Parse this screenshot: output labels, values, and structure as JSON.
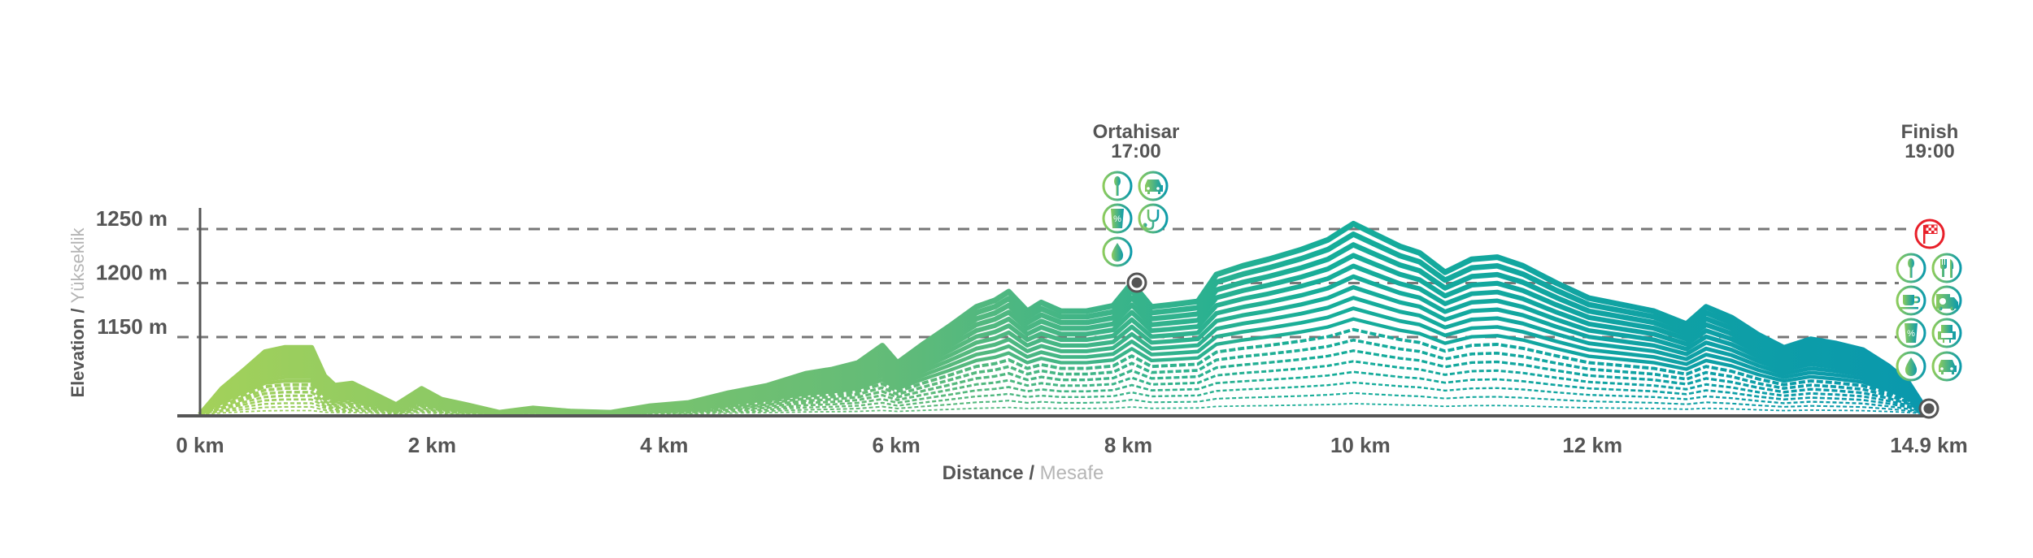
{
  "chart_data": {
    "type": "area",
    "title": "",
    "xlabel": "Distance",
    "xlabel_secondary": "Mesafe",
    "ylabel": "Elevation",
    "ylabel_secondary": "Yükseklik",
    "xlim": [
      0,
      14.9
    ],
    "ylim": [
      1077,
      1260
    ],
    "grid": "dashed horizontal at y ticks",
    "x_ticks": [
      {
        "value": 0,
        "label": "0 km"
      },
      {
        "value": 2,
        "label": "2 km"
      },
      {
        "value": 4,
        "label": "4 km"
      },
      {
        "value": 6,
        "label": "6 km"
      },
      {
        "value": 8,
        "label": "8 km"
      },
      {
        "value": 10,
        "label": "10 km"
      },
      {
        "value": 12,
        "label": "12 km"
      },
      {
        "value": 14.9,
        "label": "14.9 km"
      }
    ],
    "y_ticks": [
      {
        "value": 1250,
        "label": "1250 m"
      },
      {
        "value": 1200,
        "label": "1200 m"
      },
      {
        "value": 1150,
        "label": "1150 m"
      }
    ],
    "x": [
      0,
      0.19,
      0.39,
      0.56,
      0.73,
      0.96,
      1.07,
      1.16,
      1.31,
      1.52,
      1.69,
      1.91,
      2.08,
      2.3,
      2.58,
      2.87,
      3.2,
      3.54,
      3.88,
      4.21,
      4.55,
      4.89,
      5.22,
      5.45,
      5.67,
      5.88,
      6.01,
      6.24,
      6.46,
      6.69,
      6.85,
      6.97,
      7.13,
      7.25,
      7.42,
      7.64,
      7.87,
      8.03,
      8.2,
      8.37,
      8.6,
      8.76,
      8.99,
      9.21,
      9.49,
      9.72,
      9.94,
      10.11,
      10.34,
      10.51,
      10.73,
      10.96,
      11.18,
      11.4,
      11.69,
      11.97,
      12.3,
      12.53,
      12.81,
      12.98,
      13.2,
      13.43,
      13.65,
      13.88,
      14.1,
      14.33,
      14.55,
      14.72,
      14.9
    ],
    "y": [
      1078,
      1102,
      1120,
      1136,
      1140,
      1140,
      1114,
      1105,
      1107,
      1096,
      1087,
      1102,
      1092,
      1087,
      1080,
      1084,
      1081,
      1080,
      1086,
      1089,
      1098,
      1105,
      1116,
      1120,
      1126,
      1142,
      1126,
      1144,
      1160,
      1178,
      1184,
      1192,
      1174,
      1182,
      1174,
      1174,
      1179,
      1200,
      1178,
      1180,
      1183,
      1208,
      1216,
      1222,
      1231,
      1240,
      1255,
      1246,
      1234,
      1228,
      1210,
      1222,
      1224,
      1216,
      1200,
      1186,
      1179,
      1174,
      1162,
      1178,
      1168,
      1152,
      1140,
      1148,
      1144,
      1138,
      1123,
      1108,
      1078
    ],
    "gradient_colors": [
      "#a3d15a",
      "#62bb78",
      "#16ad99",
      "#0a98ad"
    ],
    "waypoints": [
      {
        "name": "Ortahisar",
        "time": "17:00",
        "km": 8.05,
        "elevation": 1200,
        "icons": [
          "spoon-icon",
          "car-icon",
          "drink-icon",
          "stethoscope-icon",
          "water-drop-icon"
        ]
      },
      {
        "name": "Finish",
        "time": "19:00",
        "km": 14.9,
        "elevation": 1078,
        "flag_icon": "checkered-flag-icon",
        "icons": [
          "spoon-icon",
          "fork-knife-icon",
          "coffee-cup-icon",
          "ambulance-icon",
          "drink-icon",
          "seat-icon",
          "water-drop-icon",
          "car-icon"
        ]
      }
    ],
    "flag_color": "#e8202a"
  }
}
